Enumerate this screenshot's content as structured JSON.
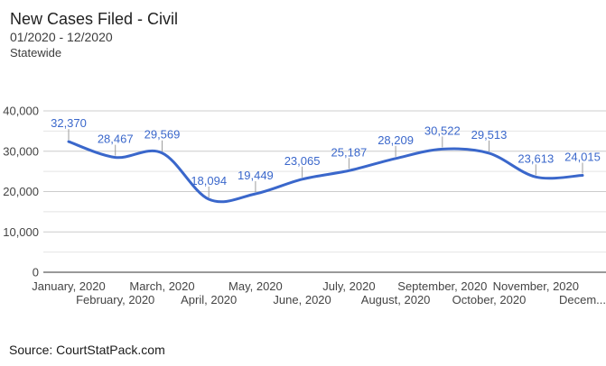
{
  "header": {
    "title": "New Cases Filed - Civil",
    "date_range": "01/2020 - 12/2020",
    "scope": "Statewide"
  },
  "source": {
    "label": "Source: CourtStatPack.com"
  },
  "chart_data": {
    "type": "line",
    "title": "New Cases Filed - Civil",
    "subtitle": "01/2020 - 12/2020",
    "region": "Statewide",
    "categories": [
      "January, 2020",
      "February, 2020",
      "March, 2020",
      "April, 2020",
      "May, 2020",
      "June, 2020",
      "July, 2020",
      "August, 2020",
      "September, 2020",
      "October, 2020",
      "November, 2020",
      "December, 2020"
    ],
    "x_tick_display": [
      "January, 2020",
      "February, 2020",
      "March, 2020",
      "April, 2020",
      "May, 2020",
      "June, 2020",
      "July, 2020",
      "August, 2020",
      "September, 2020",
      "October, 2020",
      "November, 2020",
      "Decem..."
    ],
    "values": [
      32370,
      28467,
      29569,
      18094,
      19449,
      23065,
      25187,
      28209,
      30522,
      29513,
      23613,
      24015
    ],
    "data_labels": [
      "32,370",
      "28,467",
      "29,569",
      "18,094",
      "19,449",
      "23,065",
      "25,187",
      "28,209",
      "30,522",
      "29,513",
      "23,613",
      "24,015"
    ],
    "ylim": [
      0,
      40000
    ],
    "y_major_ticks": [
      0,
      10000,
      20000,
      30000,
      40000
    ],
    "y_tick_labels": [
      "0",
      "10,000",
      "20,000",
      "30,000",
      "40,000"
    ],
    "y_minor_step": 5000,
    "smooth": true,
    "grid": true,
    "legend": "none",
    "xlabel": "",
    "ylabel": "",
    "colors": {
      "series": "#3a67cb",
      "annotation_text": "#3a67cb",
      "annotation_stem": "#9e9e9e",
      "grid_major": "#cccccc",
      "grid_minor": "#e4e4e4",
      "baseline": "#333333",
      "axis_text": "#444444"
    }
  }
}
